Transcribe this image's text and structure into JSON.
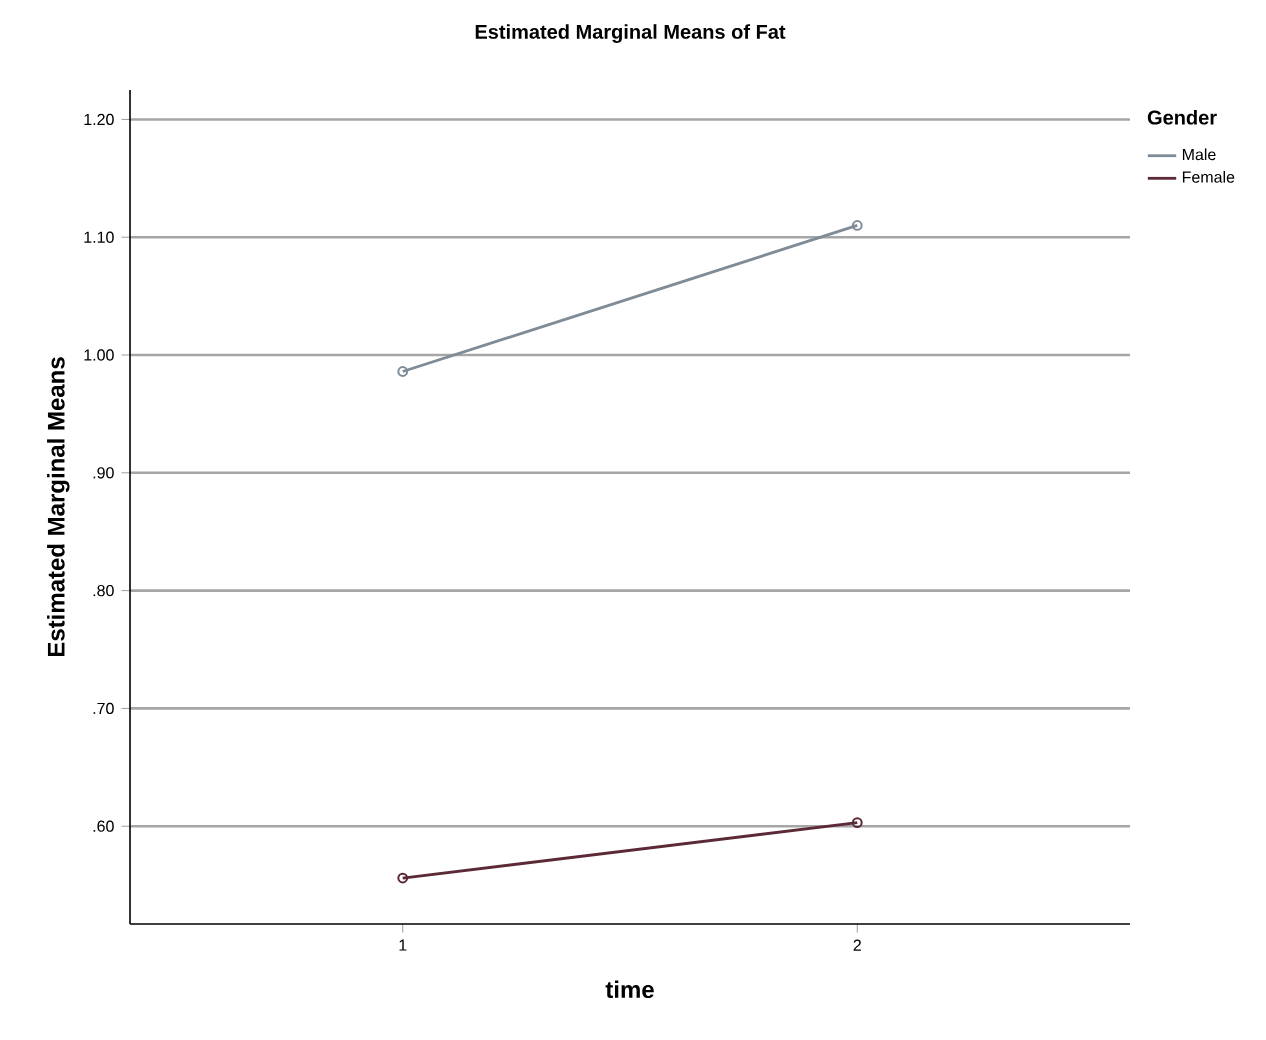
{
  "chart_data": {
    "type": "line",
    "title": "Estimated Marginal Means of Fat",
    "xlabel": "time",
    "ylabel": "Estimated Marginal Means",
    "legend_title": "Gender",
    "categories": [
      "1",
      "2"
    ],
    "series": [
      {
        "name": "Male",
        "color": "#7f8b97",
        "values": [
          0.986,
          1.11
        ]
      },
      {
        "name": "Female",
        "color": "#5b2a36",
        "values": [
          0.556,
          0.603
        ]
      }
    ],
    "ylim": [
      0.517,
      1.225
    ],
    "yticks": [
      {
        "value": 0.6,
        "label": ".60"
      },
      {
        "value": 0.7,
        "label": ".70"
      },
      {
        "value": 0.8,
        "label": ".80"
      },
      {
        "value": 0.9,
        "label": ".90"
      },
      {
        "value": 1.0,
        "label": "1.00"
      },
      {
        "value": 1.1,
        "label": "1.10"
      },
      {
        "value": 1.2,
        "label": "1.20"
      }
    ],
    "grid": "y",
    "legend": "top right",
    "marker": "circle",
    "line_style": "solid"
  }
}
